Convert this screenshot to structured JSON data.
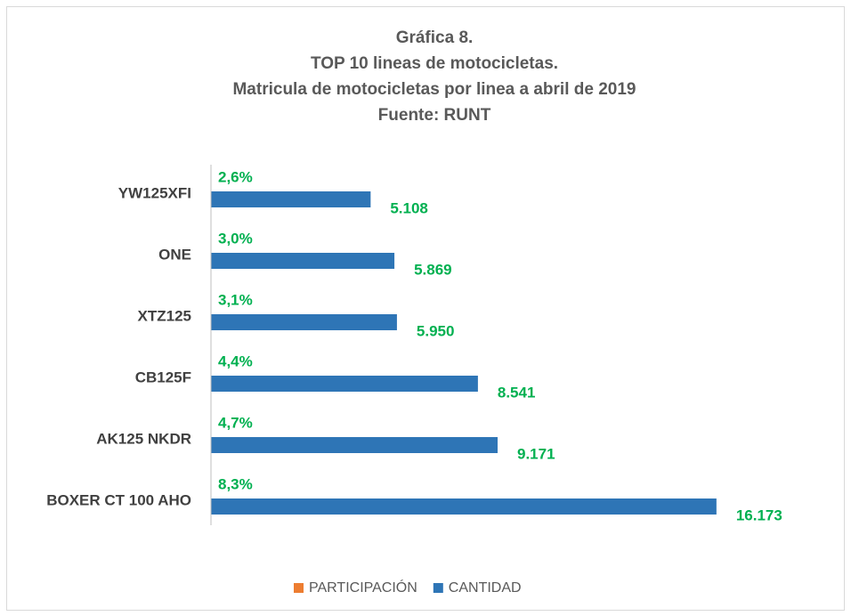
{
  "chart_data": {
    "type": "hbar",
    "title": [
      "Gráfica 8.",
      "TOP 10 lineas de motocicletas.",
      "Matricula de motocicletas por linea a abril de 2019",
      "Fuente: RUNT"
    ],
    "categories": [
      "YW125XFI",
      "ONE",
      "XTZ125",
      "CB125F",
      "AK125 NKDR",
      "BOXER CT 100 AHO"
    ],
    "series": [
      {
        "name": "PARTICIPACIÓN",
        "color": "#ed7d31",
        "values": [
          2.6,
          3.0,
          3.1,
          4.4,
          4.7,
          8.3
        ],
        "value_labels": [
          "2,6%",
          "3,0%",
          "3,1%",
          "4,4%",
          "4,7%",
          "8,3%"
        ],
        "label_color": "#00b050"
      },
      {
        "name": "CANTIDAD",
        "color": "#2e75b6",
        "values": [
          5108,
          5869,
          5950,
          8541,
          9171,
          16173
        ],
        "value_labels": [
          "5.108",
          "5.869",
          "5.950",
          "8.541",
          "9.171",
          "16.173"
        ],
        "label_color": "#00b050"
      }
    ],
    "xlim": [
      0,
      18000
    ],
    "legend": "bottom"
  }
}
